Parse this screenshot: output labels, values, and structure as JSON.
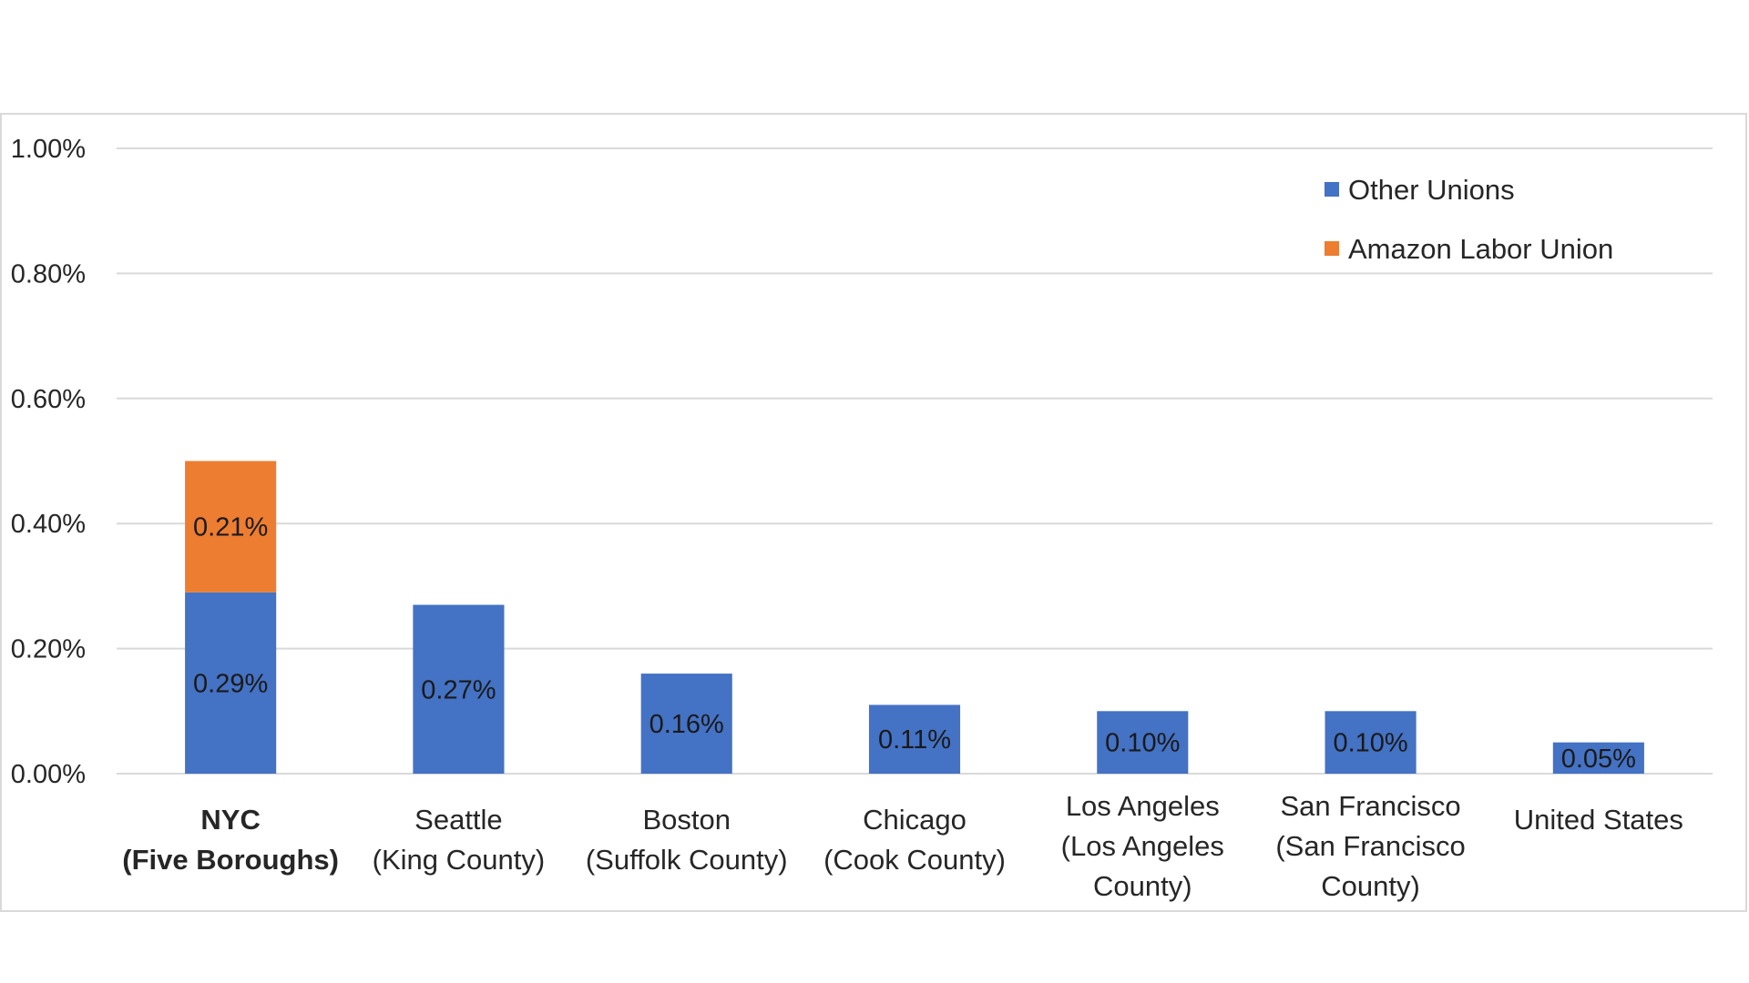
{
  "chart_data": {
    "type": "bar",
    "stacked": true,
    "categories": [
      {
        "lines": [
          "NYC",
          "(Five Boroughs)"
        ],
        "bold": true
      },
      {
        "lines": [
          "Seattle",
          "(King County)"
        ],
        "bold": false
      },
      {
        "lines": [
          "Boston",
          "(Suffolk County)"
        ],
        "bold": false
      },
      {
        "lines": [
          "Chicago",
          "(Cook County)"
        ],
        "bold": false
      },
      {
        "lines": [
          "Los Angeles",
          "(Los Angeles",
          "County)"
        ],
        "bold": false
      },
      {
        "lines": [
          "San Francisco",
          "(San Francisco",
          "County)"
        ],
        "bold": false
      },
      {
        "lines": [
          "United States"
        ],
        "bold": false
      }
    ],
    "series": [
      {
        "name": "Other Unions",
        "color": "#4472c4",
        "values": [
          0.29,
          0.27,
          0.16,
          0.11,
          0.1,
          0.1,
          0.05
        ],
        "labels": [
          "0.29%",
          "0.27%",
          "0.16%",
          "0.11%",
          "0.10%",
          "0.10%",
          "0.05%"
        ]
      },
      {
        "name": "Amazon Labor Union",
        "color": "#ed7d31",
        "values": [
          0.21,
          null,
          null,
          null,
          null,
          null,
          null
        ],
        "labels": [
          "0.21%",
          "",
          "",
          "",
          "",
          "",
          ""
        ]
      }
    ],
    "y_ticks": [
      "0.00%",
      "0.20%",
      "0.40%",
      "0.60%",
      "0.80%",
      "1.00%"
    ],
    "ylim": [
      0,
      1.0
    ],
    "grid": true,
    "legend_position": "top-right",
    "title": "",
    "xlabel": "",
    "ylabel": ""
  }
}
